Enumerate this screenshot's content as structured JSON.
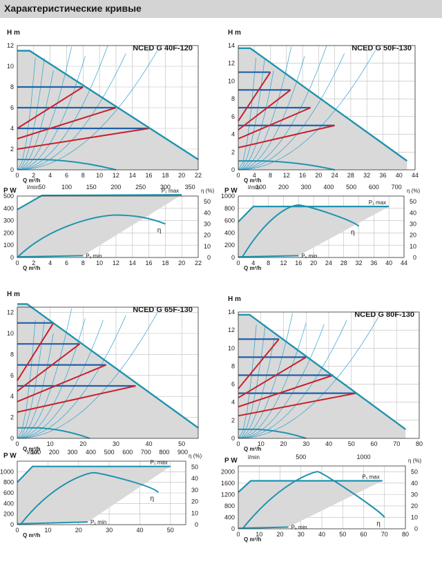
{
  "header": {
    "title": "Характеристические кривые"
  },
  "labels": {
    "h_axis": "H m",
    "p_axis": "P W",
    "eta_axis": "η (%)",
    "q_axis": "Q m³/h",
    "lmin": "l/min",
    "p1max": "P₁ max",
    "p1min": "P₁ min",
    "eta": "η"
  },
  "chart_data": [
    {
      "type": "line",
      "title": "NCED G 40F-120",
      "h_chart": {
        "xlim": [
          0,
          22
        ],
        "ylim": [
          0,
          12
        ],
        "xticks": [
          0,
          2,
          4,
          6,
          8,
          10,
          12,
          14,
          16,
          18,
          20,
          22
        ],
        "yticks": [
          0,
          2,
          4,
          6,
          8,
          10,
          12
        ],
        "max_curve": [
          [
            0,
            11.5
          ],
          [
            1.5,
            11.5
          ],
          [
            22,
            1
          ]
        ],
        "fixed_speed_lines": [
          {
            "h": 8,
            "q_end": 8
          },
          {
            "h": 6,
            "q_end": 12
          },
          {
            "h": 4,
            "q_end": 16
          }
        ],
        "prop_pressure_lines": [
          {
            "h0": 4,
            "q_end": 8,
            "h_end": 8
          },
          {
            "h0": 3,
            "q_end": 12,
            "h_end": 6
          },
          {
            "h0": 2,
            "q_end": 16,
            "h_end": 4
          }
        ],
        "low_curve": [
          [
            0,
            1
          ],
          [
            3,
            1
          ],
          [
            12,
            0
          ]
        ]
      },
      "lmin_ticks": [
        50,
        100,
        150,
        200,
        250,
        300,
        350
      ],
      "p_chart": {
        "xlim": [
          0,
          22
        ],
        "ylim": [
          0,
          500
        ],
        "yticks": [
          0,
          100,
          200,
          300,
          400,
          500
        ],
        "eta_ticks": [
          0,
          10,
          20,
          30,
          40,
          50
        ],
        "xticks": [
          0,
          2,
          4,
          6,
          8,
          10,
          12,
          14,
          16,
          18,
          20,
          22
        ],
        "p1max": [
          [
            0,
            390
          ],
          [
            3,
            505
          ],
          [
            20,
            510
          ]
        ],
        "p1min": [
          [
            0,
            5
          ],
          [
            8,
            15
          ]
        ],
        "eta": [
          [
            0,
            0
          ],
          [
            4,
            25
          ],
          [
            12,
            38
          ],
          [
            18,
            30
          ]
        ]
      }
    },
    {
      "type": "line",
      "title": "NCED G 50F-130",
      "h_chart": {
        "xlim": [
          0,
          44
        ],
        "ylim": [
          0,
          14
        ],
        "xticks": [
          0,
          4,
          8,
          12,
          16,
          20,
          24,
          28,
          32,
          36,
          40,
          44
        ],
        "yticks": [
          0,
          2,
          4,
          6,
          8,
          10,
          12,
          14
        ],
        "max_curve": [
          [
            0,
            13.7
          ],
          [
            3,
            13.7
          ],
          [
            42,
            1
          ]
        ],
        "fixed_speed_lines": [
          {
            "h": 11,
            "q_end": 8
          },
          {
            "h": 9,
            "q_end": 13
          },
          {
            "h": 7,
            "q_end": 18
          },
          {
            "h": 5,
            "q_end": 24
          }
        ],
        "prop_pressure_lines": [
          {
            "h0": 5.5,
            "q_end": 8,
            "h_end": 11
          },
          {
            "h0": 4.5,
            "q_end": 13,
            "h_end": 9
          },
          {
            "h0": 3.5,
            "q_end": 18,
            "h_end": 7
          },
          {
            "h0": 2.5,
            "q_end": 24,
            "h_end": 5
          }
        ],
        "low_curve": [
          [
            0,
            1
          ],
          [
            6,
            1
          ],
          [
            24,
            0
          ]
        ]
      },
      "lmin_ticks": [
        100,
        200,
        300,
        400,
        500,
        600,
        700
      ],
      "p_chart": {
        "xlim": [
          0,
          44
        ],
        "ylim": [
          0,
          1000
        ],
        "yticks": [
          0,
          200,
          400,
          600,
          800,
          1000
        ],
        "eta_ticks": [
          0,
          10,
          20,
          30,
          40,
          50
        ],
        "xticks": [
          0,
          4,
          8,
          12,
          16,
          20,
          24,
          28,
          32,
          36,
          40,
          44
        ],
        "p1max": [
          [
            0,
            580
          ],
          [
            4,
            830
          ],
          [
            40,
            830
          ]
        ],
        "p1min": [
          [
            0,
            10
          ],
          [
            16,
            30
          ]
        ],
        "eta": [
          [
            1,
            0
          ],
          [
            8,
            35
          ],
          [
            16,
            47
          ],
          [
            32,
            28
          ]
        ]
      }
    },
    {
      "type": "line",
      "title": "NCED G 65F-130",
      "h_chart": {
        "xlim": [
          0,
          55
        ],
        "ylim": [
          0,
          12.5
        ],
        "xticks": [
          0,
          10,
          20,
          30,
          40,
          50
        ],
        "yticks": [
          0,
          2,
          4,
          6,
          8,
          10,
          12
        ],
        "max_curve": [
          [
            0,
            12.8
          ],
          [
            3,
            12.8
          ],
          [
            55,
            1
          ]
        ],
        "fixed_speed_lines": [
          {
            "h": 11,
            "q_end": 11
          },
          {
            "h": 9,
            "q_end": 19
          },
          {
            "h": 7,
            "q_end": 27
          },
          {
            "h": 5,
            "q_end": 36
          }
        ],
        "prop_pressure_lines": [
          {
            "h0": 5.5,
            "q_end": 11,
            "h_end": 11
          },
          {
            "h0": 4.5,
            "q_end": 19,
            "h_end": 9
          },
          {
            "h0": 3.5,
            "q_end": 27,
            "h_end": 7
          },
          {
            "h0": 2.5,
            "q_end": 36,
            "h_end": 5
          }
        ],
        "low_curve": [
          [
            0,
            1
          ],
          [
            6,
            1
          ],
          [
            22,
            0
          ]
        ]
      },
      "lmin_ticks": [
        100,
        200,
        300,
        400,
        500,
        600,
        700,
        800,
        900
      ],
      "p_chart": {
        "xlim": [
          0,
          55
        ],
        "ylim": [
          0,
          1200
        ],
        "yticks": [
          0,
          200,
          400,
          600,
          800,
          1000
        ],
        "eta_ticks": [
          0,
          10,
          20,
          30,
          40,
          50
        ],
        "xticks": [
          0,
          10,
          20,
          30,
          40,
          50
        ],
        "p1max": [
          [
            0,
            800
          ],
          [
            5,
            1100
          ],
          [
            50,
            1100
          ]
        ],
        "p1min": [
          [
            0,
            15
          ],
          [
            23,
            50
          ]
        ],
        "eta": [
          [
            1,
            0
          ],
          [
            12,
            33
          ],
          [
            25,
            45
          ],
          [
            46,
            28
          ]
        ]
      }
    },
    {
      "type": "line",
      "title": "NCED G 80F-130",
      "h_chart": {
        "xlim": [
          0,
          80
        ],
        "ylim": [
          0,
          14
        ],
        "xticks": [
          0,
          10,
          20,
          30,
          40,
          50,
          60,
          70,
          80
        ],
        "yticks": [
          0,
          2,
          4,
          6,
          8,
          10,
          12,
          14
        ],
        "max_curve": [
          [
            0,
            13.7
          ],
          [
            5,
            13.7
          ],
          [
            74,
            1
          ]
        ],
        "fixed_speed_lines": [
          {
            "h": 11,
            "q_end": 18
          },
          {
            "h": 9,
            "q_end": 30
          },
          {
            "h": 7,
            "q_end": 42
          },
          {
            "h": 5,
            "q_end": 52
          }
        ],
        "prop_pressure_lines": [
          {
            "h0": 5.5,
            "q_end": 18,
            "h_end": 11
          },
          {
            "h0": 4.5,
            "q_end": 30,
            "h_end": 9
          },
          {
            "h0": 3.5,
            "q_end": 42,
            "h_end": 7
          },
          {
            "h0": 2.5,
            "q_end": 52,
            "h_end": 5
          }
        ],
        "low_curve": [
          [
            0,
            1
          ],
          [
            8,
            1
          ],
          [
            30,
            0
          ]
        ]
      },
      "lmin_ticks": [
        500,
        1000
      ],
      "p_chart": {
        "xlim": [
          0,
          80
        ],
        "ylim": [
          0,
          2200
        ],
        "yticks": [
          0,
          400,
          800,
          1200,
          1600,
          2000
        ],
        "eta_ticks": [
          0,
          10,
          20,
          30,
          40,
          50
        ],
        "xticks": [
          0,
          10,
          20,
          30,
          40,
          50,
          60,
          70,
          80
        ],
        "p1max": [
          [
            0,
            1280
          ],
          [
            6,
            1680
          ],
          [
            69,
            1680
          ]
        ],
        "p1min": [
          [
            0,
            20
          ],
          [
            24,
            60
          ]
        ],
        "eta": [
          [
            2,
            0
          ],
          [
            20,
            37
          ],
          [
            38,
            50
          ],
          [
            70,
            10
          ]
        ]
      }
    }
  ]
}
